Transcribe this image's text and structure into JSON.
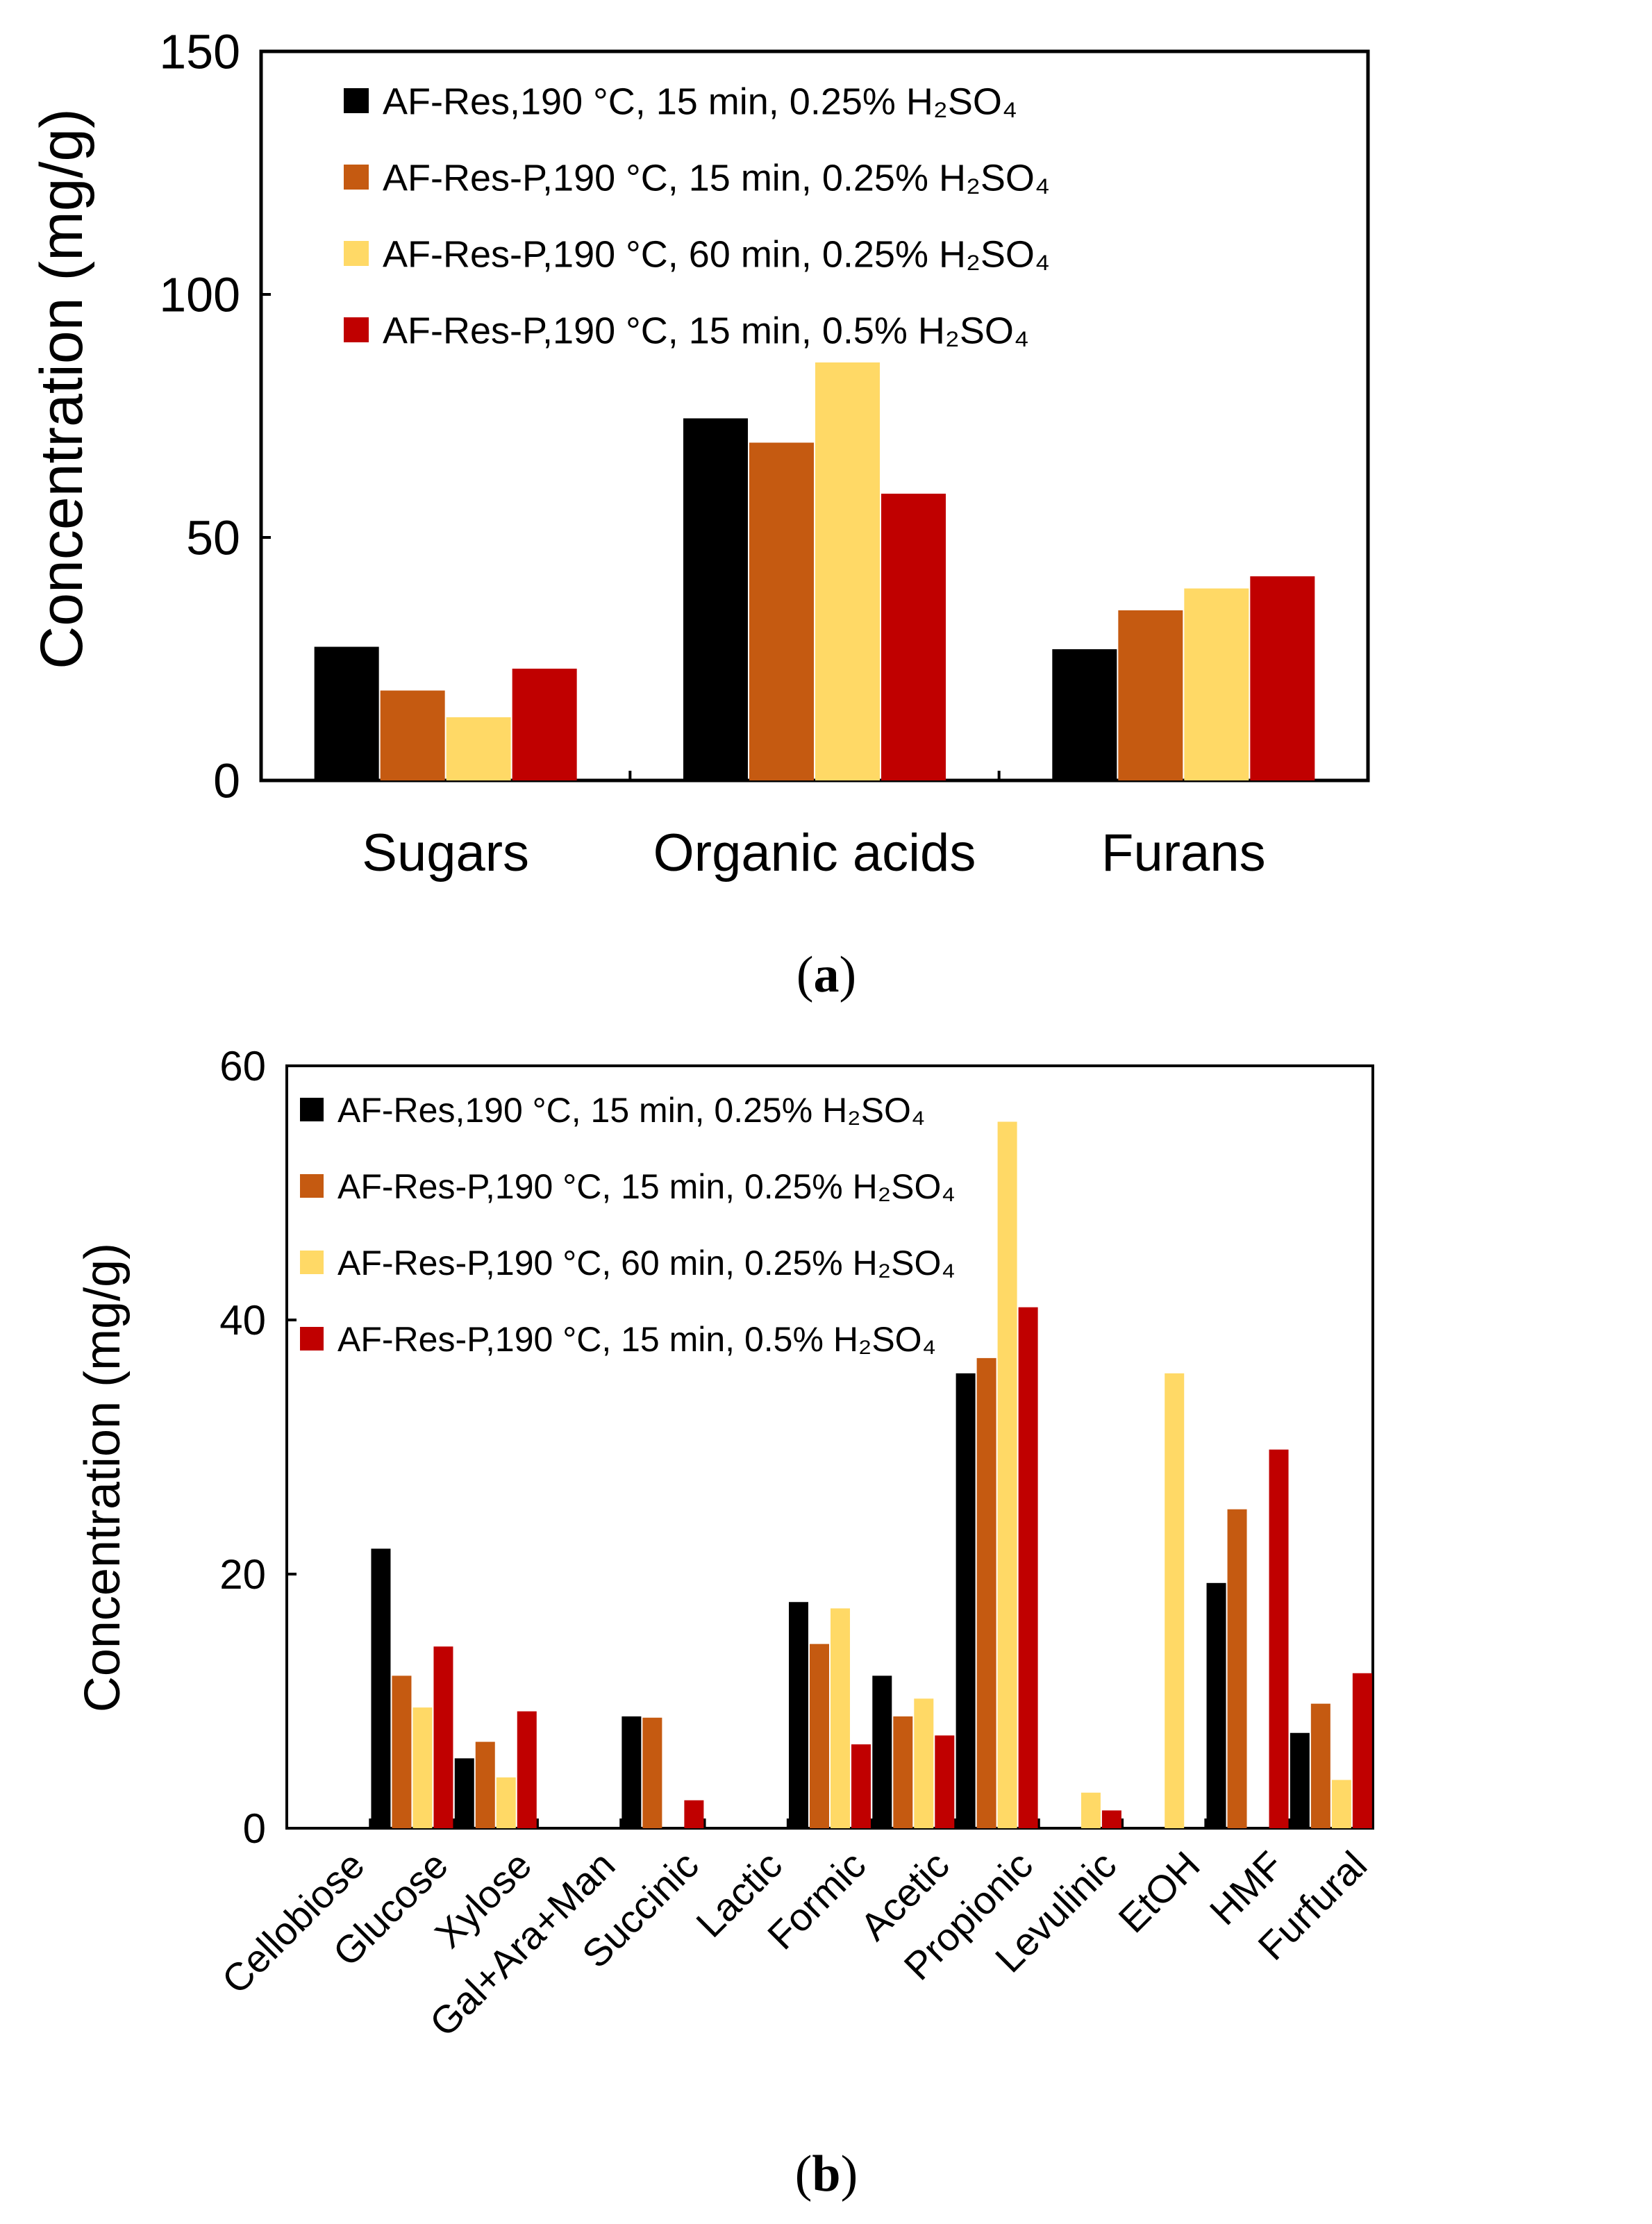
{
  "chart_data": [
    {
      "panel": "a",
      "type": "bar",
      "caption_letter": "a",
      "caption_open": "(",
      "caption_close": ")",
      "ylabel": "Concentration (mg/g)",
      "xlabel": "",
      "ylim": [
        0,
        150
      ],
      "yticks": [
        0,
        50,
        100,
        150
      ],
      "grid": false,
      "legend_position": "top-left",
      "categories": [
        "Sugars",
        "Organic acids",
        "Furans"
      ],
      "series": [
        {
          "name": "AF-Res,190 °C, 15 min, 0.25% H₂SO₄",
          "color": "#000000",
          "values": [
            27.5,
            74.5,
            27
          ]
        },
        {
          "name": "AF-Res-P,190 °C, 15 min, 0.25% H₂SO₄",
          "color": "#c55a11",
          "values": [
            18.5,
            69.5,
            35
          ]
        },
        {
          "name": "AF-Res-P,190 °C, 60 min, 0.25% H₂SO₄",
          "color": "#ffd966",
          "values": [
            13,
            86,
            39.5
          ]
        },
        {
          "name": "AF-Res-P,190 °C, 15 min, 0.5% H₂SO₄",
          "color": "#c00000",
          "values": [
            23,
            59,
            42
          ]
        }
      ]
    },
    {
      "panel": "b",
      "type": "bar",
      "caption_letter": "b",
      "caption_open": "(",
      "caption_close": ")",
      "ylabel": "Concentration (mg/g)",
      "xlabel": "",
      "ylim": [
        0,
        60
      ],
      "yticks": [
        0,
        20,
        40,
        60
      ],
      "grid": false,
      "legend_position": "top-left",
      "categories": [
        "Cellobiose",
        "Glucose",
        "Xylose",
        "Gal+Ara+Man",
        "Succinic",
        "Lactic",
        "Formic",
        "Acetic",
        "Propionic",
        "Levulinic",
        "EtOH",
        "HMF",
        "Furfural"
      ],
      "series": [
        {
          "name": "AF-Res,190 °C, 15 min, 0.25% H₂SO₄",
          "color": "#000000",
          "values": [
            0,
            22,
            5.5,
            0,
            8.8,
            0,
            17.8,
            12,
            35.8,
            0,
            0,
            19.3,
            7.5
          ]
        },
        {
          "name": "AF-Res-P,190 °C, 15 min, 0.25% H₂SO₄",
          "color": "#c55a11",
          "values": [
            0,
            12,
            6.8,
            0,
            8.7,
            0,
            14.5,
            8.8,
            37,
            0,
            0,
            25.1,
            9.8
          ]
        },
        {
          "name": "AF-Res-P,190 °C, 60 min, 0.25% H₂SO₄",
          "color": "#ffd966",
          "values": [
            0,
            9.5,
            4,
            0,
            0,
            0,
            17.3,
            10.2,
            55.6,
            2.8,
            35.8,
            0,
            3.8
          ]
        },
        {
          "name": "AF-Res-P,190 °C, 15 min, 0.5% H₂SO₄",
          "color": "#c00000",
          "values": [
            0,
            14.3,
            9.2,
            0,
            2.2,
            0,
            6.6,
            7.3,
            41,
            1.4,
            0,
            29.8,
            12.2
          ]
        }
      ]
    }
  ]
}
